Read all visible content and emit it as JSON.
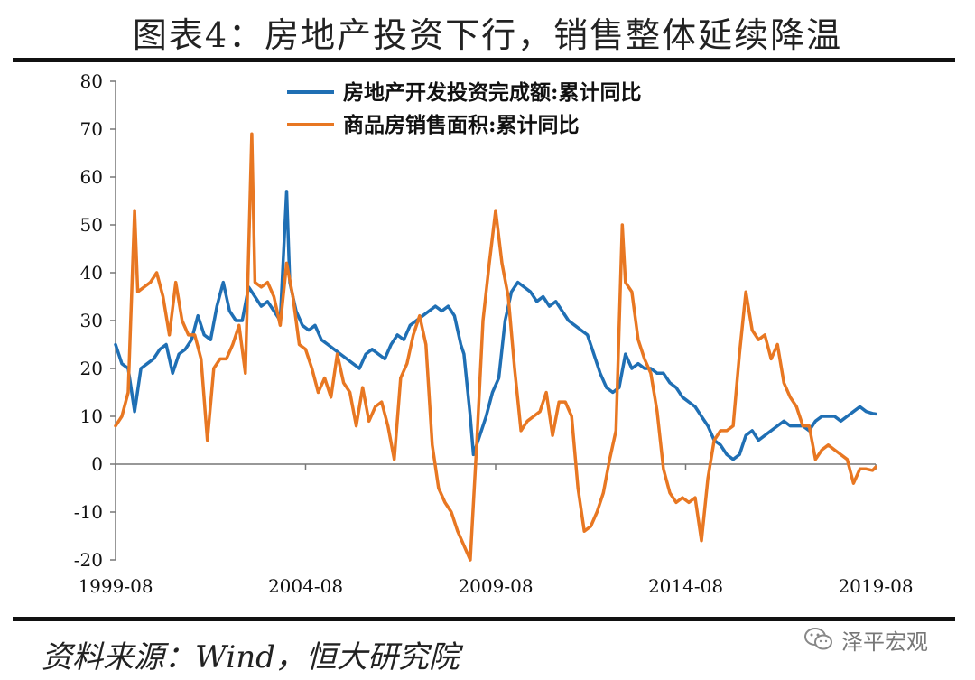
{
  "figure": {
    "title": "图表4：房地产投资下行，销售整体延续降温",
    "source": "资料来源：Wind，恒大研究院",
    "watermark": "泽平宏观",
    "watermark_icon": "wechat-icon"
  },
  "chart_data": {
    "type": "line",
    "title": "",
    "xlabel": "",
    "ylabel": "",
    "ylim": [
      -20,
      80
    ],
    "yticks": [
      -20,
      -10,
      0,
      10,
      20,
      30,
      40,
      50,
      60,
      70,
      80
    ],
    "xlim": [
      "1999-08",
      "2019-08"
    ],
    "xticks": [
      "1999-08",
      "2004-08",
      "2009-08",
      "2014-08",
      "2019-08"
    ],
    "grid": false,
    "legend_position": "top-center",
    "series": [
      {
        "name": "房地产开发投资完成额:累计同比",
        "color": "#1f6fb4",
        "points": [
          [
            "1999-08",
            25
          ],
          [
            "1999-10",
            21
          ],
          [
            "1999-12",
            20
          ],
          [
            "2000-02",
            11
          ],
          [
            "2000-04",
            20
          ],
          [
            "2000-06",
            21
          ],
          [
            "2000-08",
            22
          ],
          [
            "2000-10",
            24
          ],
          [
            "2000-12",
            25
          ],
          [
            "2001-02",
            19
          ],
          [
            "2001-04",
            23
          ],
          [
            "2001-06",
            24
          ],
          [
            "2001-08",
            26
          ],
          [
            "2001-10",
            31
          ],
          [
            "2001-12",
            27
          ],
          [
            "2002-02",
            26
          ],
          [
            "2002-04",
            33
          ],
          [
            "2002-06",
            38
          ],
          [
            "2002-08",
            32
          ],
          [
            "2002-10",
            30
          ],
          [
            "2002-12",
            30
          ],
          [
            "2003-02",
            37
          ],
          [
            "2003-04",
            35
          ],
          [
            "2003-06",
            33
          ],
          [
            "2003-08",
            34
          ],
          [
            "2003-10",
            32
          ],
          [
            "2003-12",
            30
          ],
          [
            "2004-02",
            57
          ],
          [
            "2004-03",
            38
          ],
          [
            "2004-05",
            32
          ],
          [
            "2004-07",
            29
          ],
          [
            "2004-09",
            28
          ],
          [
            "2004-11",
            29
          ],
          [
            "2005-01",
            26
          ],
          [
            "2005-03",
            25
          ],
          [
            "2005-05",
            24
          ],
          [
            "2005-07",
            23
          ],
          [
            "2005-09",
            22
          ],
          [
            "2005-11",
            21
          ],
          [
            "2006-01",
            20
          ],
          [
            "2006-03",
            23
          ],
          [
            "2006-05",
            24
          ],
          [
            "2006-07",
            23
          ],
          [
            "2006-09",
            22
          ],
          [
            "2006-11",
            25
          ],
          [
            "2007-01",
            27
          ],
          [
            "2007-03",
            26
          ],
          [
            "2007-05",
            29
          ],
          [
            "2007-07",
            30
          ],
          [
            "2007-09",
            31
          ],
          [
            "2007-11",
            32
          ],
          [
            "2008-01",
            33
          ],
          [
            "2008-03",
            32
          ],
          [
            "2008-05",
            33
          ],
          [
            "2008-07",
            31
          ],
          [
            "2008-09",
            25
          ],
          [
            "2008-10",
            23
          ],
          [
            "2008-12",
            10
          ],
          [
            "2009-01",
            2
          ],
          [
            "2009-03",
            6
          ],
          [
            "2009-05",
            10
          ],
          [
            "2009-07",
            15
          ],
          [
            "2009-09",
            18
          ],
          [
            "2009-11",
            30
          ],
          [
            "2010-01",
            36
          ],
          [
            "2010-03",
            38
          ],
          [
            "2010-05",
            37
          ],
          [
            "2010-07",
            36
          ],
          [
            "2010-09",
            34
          ],
          [
            "2010-11",
            35
          ],
          [
            "2011-01",
            33
          ],
          [
            "2011-03",
            34
          ],
          [
            "2011-05",
            32
          ],
          [
            "2011-07",
            30
          ],
          [
            "2011-09",
            29
          ],
          [
            "2011-11",
            28
          ],
          [
            "2012-01",
            27
          ],
          [
            "2012-03",
            23
          ],
          [
            "2012-05",
            19
          ],
          [
            "2012-07",
            16
          ],
          [
            "2012-09",
            15
          ],
          [
            "2012-11",
            16
          ],
          [
            "2013-01",
            23
          ],
          [
            "2013-03",
            20
          ],
          [
            "2013-05",
            21
          ],
          [
            "2013-07",
            20
          ],
          [
            "2013-09",
            20
          ],
          [
            "2013-11",
            19
          ],
          [
            "2014-01",
            19
          ],
          [
            "2014-03",
            17
          ],
          [
            "2014-05",
            16
          ],
          [
            "2014-07",
            14
          ],
          [
            "2014-09",
            13
          ],
          [
            "2014-11",
            12
          ],
          [
            "2015-01",
            10
          ],
          [
            "2015-03",
            8
          ],
          [
            "2015-05",
            5
          ],
          [
            "2015-07",
            4
          ],
          [
            "2015-09",
            2
          ],
          [
            "2015-11",
            1
          ],
          [
            "2016-01",
            2
          ],
          [
            "2016-03",
            6
          ],
          [
            "2016-05",
            7
          ],
          [
            "2016-07",
            5
          ],
          [
            "2016-09",
            6
          ],
          [
            "2016-11",
            7
          ],
          [
            "2017-01",
            8
          ],
          [
            "2017-03",
            9
          ],
          [
            "2017-05",
            8
          ],
          [
            "2017-07",
            8
          ],
          [
            "2017-09",
            8
          ],
          [
            "2017-11",
            7
          ],
          [
            "2018-01",
            9
          ],
          [
            "2018-03",
            10
          ],
          [
            "2018-05",
            10
          ],
          [
            "2018-07",
            10
          ],
          [
            "2018-09",
            9
          ],
          [
            "2018-11",
            10
          ],
          [
            "2019-01",
            11
          ],
          [
            "2019-03",
            12
          ],
          [
            "2019-05",
            11
          ],
          [
            "2019-07",
            10.6
          ],
          [
            "2019-08",
            10.5
          ]
        ]
      },
      {
        "name": "商品房销售面积:累计同比",
        "color": "#e87722",
        "points": [
          [
            "1999-08",
            8
          ],
          [
            "1999-10",
            10
          ],
          [
            "1999-12",
            15
          ],
          [
            "2000-02",
            53
          ],
          [
            "2000-03",
            36
          ],
          [
            "2000-05",
            37
          ],
          [
            "2000-07",
            38
          ],
          [
            "2000-09",
            40
          ],
          [
            "2000-11",
            35
          ],
          [
            "2001-01",
            27
          ],
          [
            "2001-03",
            38
          ],
          [
            "2001-05",
            30
          ],
          [
            "2001-07",
            27
          ],
          [
            "2001-09",
            27
          ],
          [
            "2001-11",
            22
          ],
          [
            "2002-01",
            5
          ],
          [
            "2002-03",
            20
          ],
          [
            "2002-05",
            22
          ],
          [
            "2002-07",
            22
          ],
          [
            "2002-09",
            25
          ],
          [
            "2002-11",
            29
          ],
          [
            "2003-01",
            19
          ],
          [
            "2003-03",
            69
          ],
          [
            "2003-04",
            38
          ],
          [
            "2003-06",
            37
          ],
          [
            "2003-08",
            38
          ],
          [
            "2003-10",
            35
          ],
          [
            "2003-12",
            29
          ],
          [
            "2004-02",
            42
          ],
          [
            "2004-04",
            35
          ],
          [
            "2004-06",
            25
          ],
          [
            "2004-08",
            24
          ],
          [
            "2004-10",
            20
          ],
          [
            "2004-12",
            15
          ],
          [
            "2005-02",
            18
          ],
          [
            "2005-04",
            14
          ],
          [
            "2005-06",
            23
          ],
          [
            "2005-08",
            17
          ],
          [
            "2005-10",
            15
          ],
          [
            "2005-12",
            8
          ],
          [
            "2006-02",
            16
          ],
          [
            "2006-04",
            9
          ],
          [
            "2006-06",
            12
          ],
          [
            "2006-08",
            13
          ],
          [
            "2006-10",
            8
          ],
          [
            "2006-12",
            1
          ],
          [
            "2007-02",
            18
          ],
          [
            "2007-04",
            21
          ],
          [
            "2007-06",
            27
          ],
          [
            "2007-08",
            31
          ],
          [
            "2007-10",
            25
          ],
          [
            "2007-12",
            4
          ],
          [
            "2008-02",
            -5
          ],
          [
            "2008-04",
            -8
          ],
          [
            "2008-06",
            -10
          ],
          [
            "2008-08",
            -14
          ],
          [
            "2008-10",
            -17
          ],
          [
            "2008-12",
            -20
          ],
          [
            "2009-02",
            4
          ],
          [
            "2009-04",
            30
          ],
          [
            "2009-06",
            42
          ],
          [
            "2009-08",
            53
          ],
          [
            "2009-10",
            42
          ],
          [
            "2009-12",
            35
          ],
          [
            "2010-02",
            20
          ],
          [
            "2010-04",
            7
          ],
          [
            "2010-06",
            9
          ],
          [
            "2010-08",
            10
          ],
          [
            "2010-10",
            11
          ],
          [
            "2010-12",
            15
          ],
          [
            "2011-02",
            6
          ],
          [
            "2011-04",
            13
          ],
          [
            "2011-06",
            13
          ],
          [
            "2011-08",
            10
          ],
          [
            "2011-10",
            -5
          ],
          [
            "2011-12",
            -14
          ],
          [
            "2012-02",
            -13
          ],
          [
            "2012-04",
            -10
          ],
          [
            "2012-06",
            -6
          ],
          [
            "2012-08",
            1
          ],
          [
            "2012-10",
            7
          ],
          [
            "2012-12",
            50
          ],
          [
            "2013-01",
            38
          ],
          [
            "2013-03",
            36
          ],
          [
            "2013-05",
            26
          ],
          [
            "2013-07",
            22
          ],
          [
            "2013-09",
            19
          ],
          [
            "2013-11",
            11
          ],
          [
            "2014-01",
            -1
          ],
          [
            "2014-03",
            -6
          ],
          [
            "2014-05",
            -8
          ],
          [
            "2014-07",
            -7
          ],
          [
            "2014-09",
            -8
          ],
          [
            "2014-11",
            -7
          ],
          [
            "2015-01",
            -16
          ],
          [
            "2015-03",
            -3
          ],
          [
            "2015-05",
            5
          ],
          [
            "2015-07",
            7
          ],
          [
            "2015-09",
            7
          ],
          [
            "2015-11",
            8
          ],
          [
            "2016-01",
            23
          ],
          [
            "2016-03",
            36
          ],
          [
            "2016-05",
            28
          ],
          [
            "2016-07",
            26
          ],
          [
            "2016-09",
            27
          ],
          [
            "2016-11",
            22
          ],
          [
            "2017-01",
            25
          ],
          [
            "2017-03",
            17
          ],
          [
            "2017-05",
            14
          ],
          [
            "2017-07",
            12
          ],
          [
            "2017-09",
            8
          ],
          [
            "2017-11",
            8
          ],
          [
            "2018-01",
            1
          ],
          [
            "2018-03",
            3
          ],
          [
            "2018-05",
            4
          ],
          [
            "2018-07",
            3
          ],
          [
            "2018-09",
            2
          ],
          [
            "2018-11",
            1
          ],
          [
            "2019-01",
            -4
          ],
          [
            "2019-03",
            -1
          ],
          [
            "2019-05",
            -1
          ],
          [
            "2019-07",
            -1.3
          ],
          [
            "2019-08",
            -0.6
          ]
        ]
      }
    ]
  }
}
